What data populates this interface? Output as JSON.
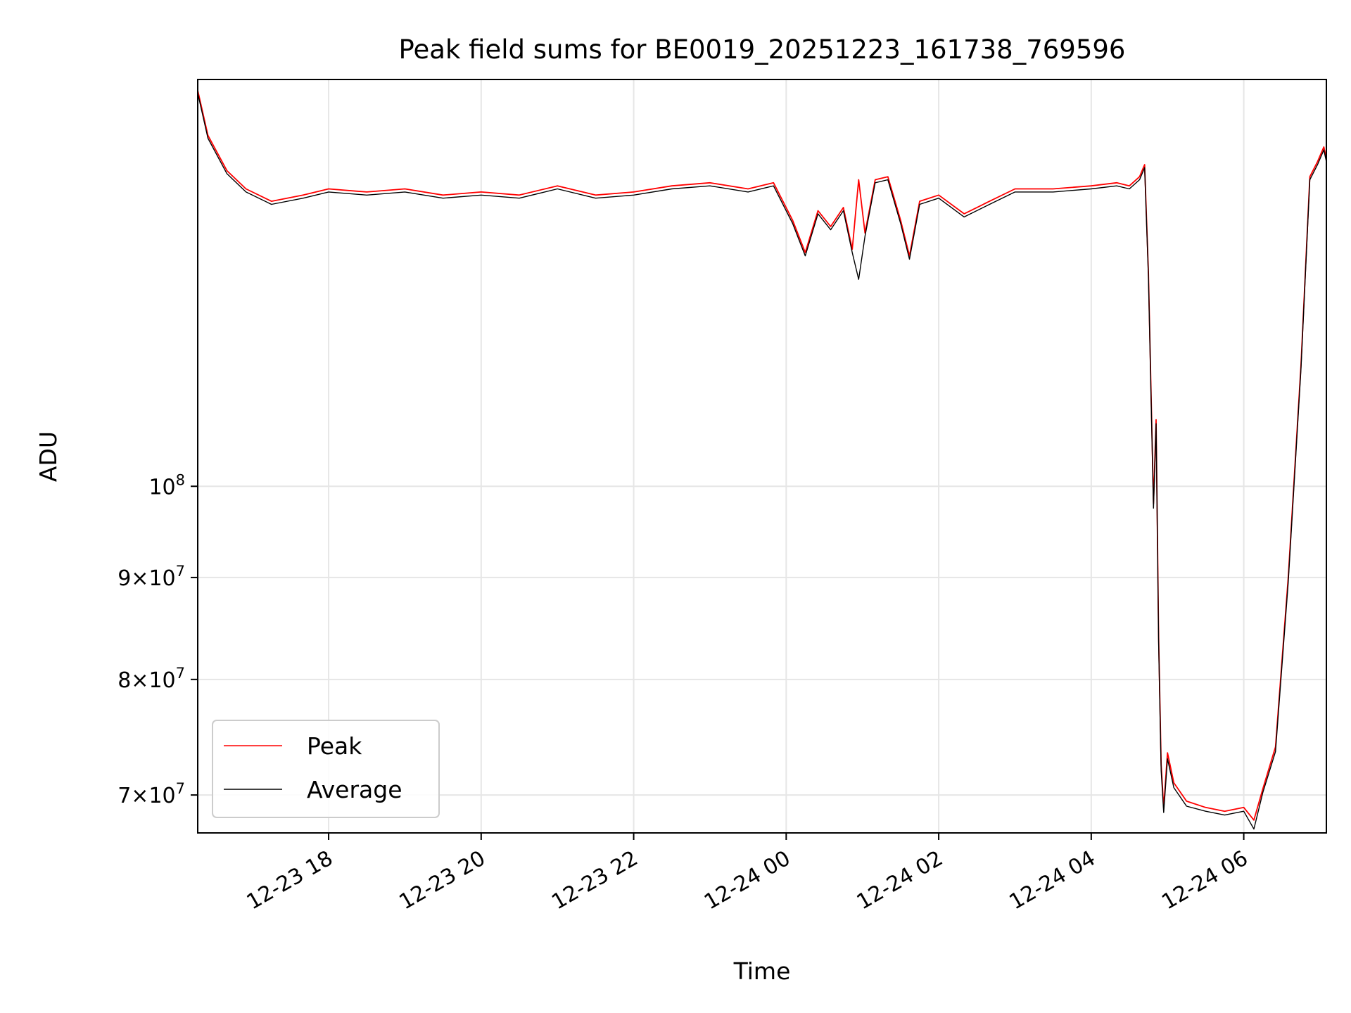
{
  "chart_data": {
    "type": "line",
    "title": "Peak field sums for BE0019_20251223_161738_769596",
    "xlabel": "Time",
    "ylabel": "ADU",
    "yscale": "log",
    "ylim": [
      67000000,
      160000000
    ],
    "xlim": [
      "2025-12-23 16:17",
      "2025-12-24 07:05"
    ],
    "grid": true,
    "legend": {
      "placement": "lower-left",
      "entries": [
        "Peak",
        "Average"
      ]
    },
    "colors": {
      "Peak": "#ff0000",
      "Average": "#000000"
    },
    "x_ticks": [
      {
        "t": "2025-12-23 18:00",
        "label": "12-23 18"
      },
      {
        "t": "2025-12-23 20:00",
        "label": "12-23 20"
      },
      {
        "t": "2025-12-23 22:00",
        "label": "12-23 22"
      },
      {
        "t": "2025-12-24 00:00",
        "label": "12-24 00"
      },
      {
        "t": "2025-12-24 02:00",
        "label": "12-24 02"
      },
      {
        "t": "2025-12-24 04:00",
        "label": "12-24 04"
      },
      {
        "t": "2025-12-24 06:00",
        "label": "12-24 06"
      }
    ],
    "y_ticks": [
      {
        "value": 70000000,
        "mant": "7",
        "exp": "7"
      },
      {
        "value": 80000000,
        "mant": "8",
        "exp": "7"
      },
      {
        "value": 90000000,
        "mant": "9",
        "exp": "7"
      },
      {
        "value": 100000000,
        "mant": "",
        "exp": "8"
      }
    ],
    "x": [
      "2025-12-23 16:17",
      "2025-12-23 16:25",
      "2025-12-23 16:40",
      "2025-12-23 16:55",
      "2025-12-23 17:15",
      "2025-12-23 17:40",
      "2025-12-23 18:00",
      "2025-12-23 18:30",
      "2025-12-23 19:00",
      "2025-12-23 19:30",
      "2025-12-23 20:00",
      "2025-12-23 20:30",
      "2025-12-23 21:00",
      "2025-12-23 21:30",
      "2025-12-23 22:00",
      "2025-12-23 22:30",
      "2025-12-23 23:00",
      "2025-12-23 23:30",
      "2025-12-23 23:50",
      "2025-12-24 00:05",
      "2025-12-24 00:15",
      "2025-12-24 00:25",
      "2025-12-24 00:35",
      "2025-12-24 00:45",
      "2025-12-24 00:52",
      "2025-12-24 00:57",
      "2025-12-24 01:02",
      "2025-12-24 01:10",
      "2025-12-24 01:20",
      "2025-12-24 01:30",
      "2025-12-24 01:37",
      "2025-12-24 01:45",
      "2025-12-24 02:00",
      "2025-12-24 02:20",
      "2025-12-24 02:40",
      "2025-12-24 03:00",
      "2025-12-24 03:30",
      "2025-12-24 04:00",
      "2025-12-24 04:20",
      "2025-12-24 04:30",
      "2025-12-24 04:38",
      "2025-12-24 04:42",
      "2025-12-24 04:45",
      "2025-12-24 04:47",
      "2025-12-24 04:49",
      "2025-12-24 04:51",
      "2025-12-24 04:53",
      "2025-12-24 04:55",
      "2025-12-24 04:57",
      "2025-12-24 05:00",
      "2025-12-24 05:05",
      "2025-12-24 05:15",
      "2025-12-24 05:30",
      "2025-12-24 05:45",
      "2025-12-24 06:00",
      "2025-12-24 06:08",
      "2025-12-24 06:15",
      "2025-12-24 06:25",
      "2025-12-24 06:35",
      "2025-12-24 06:45",
      "2025-12-24 06:52",
      "2025-12-24 06:58",
      "2025-12-24 07:03",
      "2025-12-24 07:05"
    ],
    "series": [
      {
        "name": "Peak",
        "values": [
          158000000,
          150000000,
          144000000,
          141000000,
          139000000,
          140000000,
          141000000,
          140500000,
          141000000,
          140000000,
          140500000,
          140000000,
          141500000,
          140000000,
          140500000,
          141500000,
          142000000,
          141000000,
          142000000,
          136000000,
          131000000,
          137500000,
          135000000,
          138000000,
          131500000,
          142500000,
          134000000,
          142500000,
          143000000,
          136000000,
          130500000,
          139000000,
          140000000,
          137000000,
          139000000,
          141000000,
          141000000,
          141500000,
          142000000,
          141500000,
          143000000,
          145000000,
          128000000,
          112000000,
          98000000,
          108000000,
          84000000,
          72500000,
          69000000,
          73500000,
          71000000,
          69500000,
          69000000,
          68700000,
          69000000,
          68000000,
          70500000,
          74000000,
          90000000,
          115000000,
          143000000,
          145500000,
          148000000,
          146000000
        ]
      },
      {
        "name": "Average",
        "values": [
          157500000,
          149500000,
          143500000,
          140500000,
          138500000,
          139500000,
          140500000,
          140000000,
          140500000,
          139500000,
          140000000,
          139500000,
          141000000,
          139500000,
          140000000,
          141000000,
          141500000,
          140500000,
          141500000,
          135500000,
          130500000,
          137000000,
          134500000,
          137500000,
          131000000,
          127000000,
          133500000,
          142000000,
          142500000,
          135500000,
          130000000,
          138500000,
          139500000,
          136500000,
          138500000,
          140500000,
          140500000,
          141000000,
          141500000,
          141000000,
          142500000,
          144500000,
          127500000,
          111500000,
          97500000,
          107500000,
          83500000,
          72000000,
          68600000,
          73000000,
          70600000,
          69100000,
          68700000,
          68400000,
          68700000,
          67300000,
          70200000,
          73600000,
          89500000,
          114500000,
          142500000,
          145000000,
          147500000,
          145500000
        ]
      }
    ]
  }
}
